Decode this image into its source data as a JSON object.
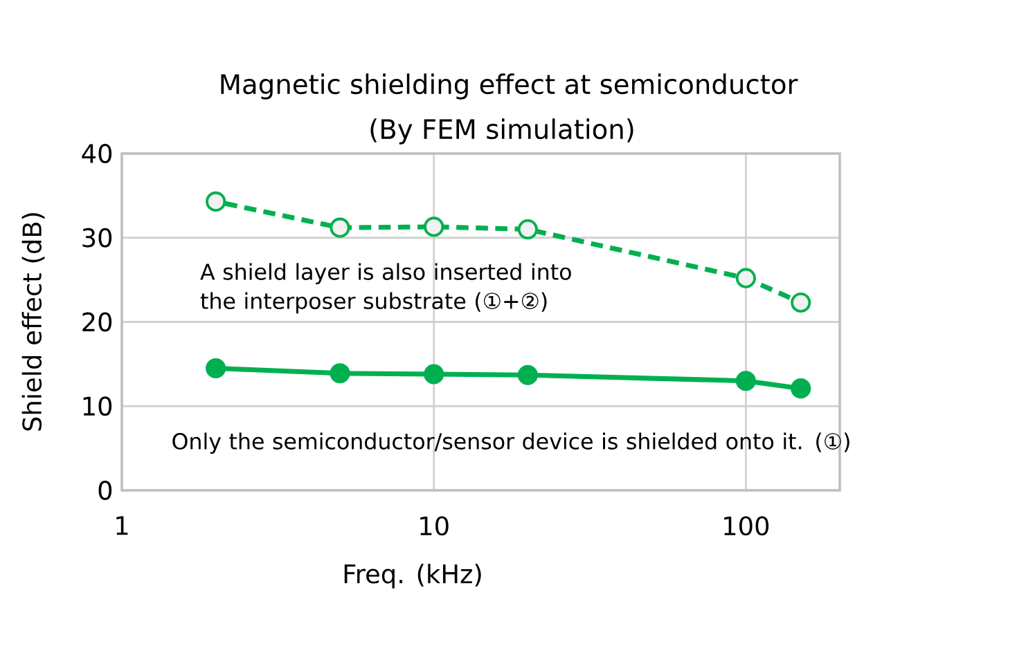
{
  "chart_data": {
    "type": "line",
    "title": "Magnetic shielding effect  at semiconductor",
    "subtitle": "(By FEM simulation)",
    "xlabel": "Freq. (kHz)",
    "ylabel": "Shield effect (dB)",
    "log": "x",
    "xlim": [
      1,
      200
    ],
    "xticks": [
      1,
      10,
      100
    ],
    "ylim": [
      0,
      40
    ],
    "yticks": [
      0,
      10,
      20,
      30,
      40
    ],
    "grid": true,
    "marker": "circle",
    "annotations": [
      "A shield layer is also inserted into the interposer substrate (①+②)",
      "Only the semiconductor/sensor device is shielded onto it. (①)"
    ],
    "series": [
      {
        "color": "#00b050",
        "line_style": "dashed",
        "x": [
          2,
          5,
          10,
          20,
          100,
          150
        ],
        "values": [
          34.3,
          31.2,
          31.3,
          31.0,
          25.2,
          22.3
        ]
      },
      {
        "color": "#00b050",
        "line_style": "solid",
        "x": [
          2,
          5,
          10,
          20,
          100,
          150
        ],
        "values": [
          14.5,
          13.9,
          13.8,
          13.7,
          13.0,
          12.1
        ]
      }
    ]
  }
}
